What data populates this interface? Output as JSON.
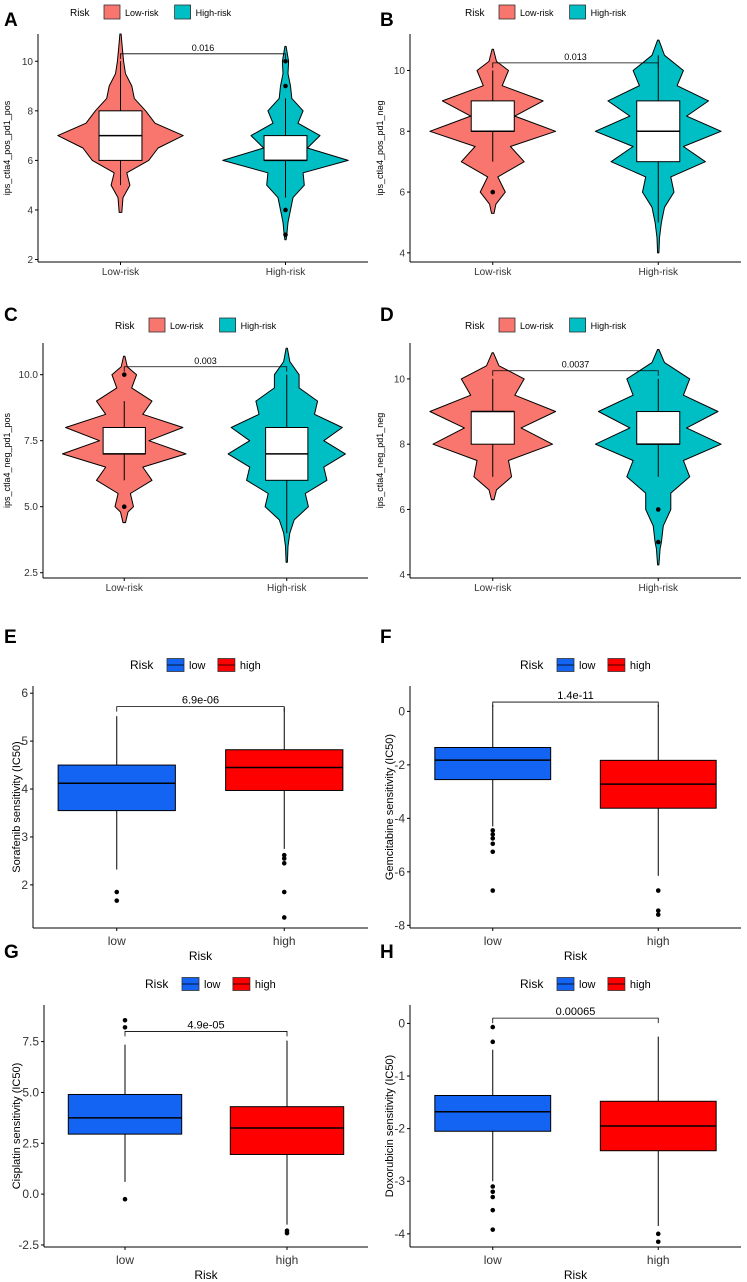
{
  "figure": {
    "legend_title": "Risk",
    "colors": {
      "violin_low": "#F8766D",
      "violin_high": "#00BFC4",
      "box_low": "#1464F4",
      "box_high": "#FF0000"
    }
  },
  "chart_data": [
    {
      "panel": "A",
      "type": "violin",
      "ylabel": "ips_ctla4_pos_pd1_pos",
      "xlabel": "",
      "categories": [
        "Low-risk",
        "High-risk"
      ],
      "legend": [
        "Low-risk",
        "High-risk"
      ],
      "ylim": [
        1.9,
        11.1
      ],
      "yticks": [
        2,
        4,
        6,
        8,
        10
      ],
      "yticklabels": [
        "2",
        "4",
        "6",
        "8",
        "10"
      ],
      "pvalue": "0.016",
      "bracket_y": 10.3,
      "violins": [
        {
          "name": "Low-risk",
          "profile": [
            [
              3.9,
              0.02
            ],
            [
              4.5,
              0.04
            ],
            [
              5,
              0.15
            ],
            [
              5.5,
              0.1
            ],
            [
              6,
              0.45
            ],
            [
              6.5,
              0.6
            ],
            [
              7,
              1.0
            ],
            [
              7.5,
              0.55
            ],
            [
              8,
              0.4
            ],
            [
              8.5,
              0.22
            ],
            [
              9,
              0.18
            ],
            [
              9.5,
              0.08
            ],
            [
              10,
              0.05
            ],
            [
              10.5,
              0.03
            ],
            [
              11.1,
              0.01
            ]
          ]
        },
        {
          "name": "High-risk",
          "profile": [
            [
              2.8,
              0.01
            ],
            [
              3,
              0.02
            ],
            [
              3.5,
              0.04
            ],
            [
              4,
              0.08
            ],
            [
              4.5,
              0.12
            ],
            [
              5,
              0.3
            ],
            [
              5.5,
              0.28
            ],
            [
              6,
              1.0
            ],
            [
              6.5,
              0.35
            ],
            [
              7,
              0.55
            ],
            [
              7.5,
              0.2
            ],
            [
              8,
              0.28
            ],
            [
              8.5,
              0.1
            ],
            [
              9,
              0.08
            ],
            [
              9.5,
              0.04
            ],
            [
              10,
              0.05
            ],
            [
              10.6,
              0.01
            ]
          ]
        }
      ],
      "boxes": [
        {
          "name": "Low-risk",
          "q1": 6,
          "median": 7,
          "q3": 8,
          "whisker_low": 5,
          "whisker_high": 10,
          "outliers": []
        },
        {
          "name": "High-risk",
          "q1": 6,
          "median": 6,
          "q3": 7,
          "whisker_low": 4.5,
          "whisker_high": 8.5,
          "outliers": [
            10,
            9,
            4,
            3
          ]
        }
      ]
    },
    {
      "panel": "B",
      "type": "violin",
      "ylabel": "ips_ctla4_pos_pd1_neg",
      "xlabel": "",
      "categories": [
        "Low-risk",
        "High-risk"
      ],
      "legend": [
        "Low-risk",
        "High-risk"
      ],
      "ylim": [
        3.7,
        11.2
      ],
      "yticks": [
        4,
        6,
        8,
        10
      ],
      "yticklabels": [
        "4",
        "6",
        "8",
        "10"
      ],
      "pvalue": "0.013",
      "bracket_y": 10.25,
      "violins": [
        {
          "name": "Low-risk",
          "profile": [
            [
              5.3,
              0.02
            ],
            [
              5.6,
              0.05
            ],
            [
              6,
              0.2
            ],
            [
              6.5,
              0.08
            ],
            [
              7,
              0.5
            ],
            [
              7.5,
              0.28
            ],
            [
              8,
              1.0
            ],
            [
              8.5,
              0.35
            ],
            [
              9,
              0.8
            ],
            [
              9.5,
              0.15
            ],
            [
              10,
              0.25
            ],
            [
              10.3,
              0.06
            ],
            [
              10.7,
              0.01
            ]
          ]
        },
        {
          "name": "High-risk",
          "profile": [
            [
              4,
              0.01
            ],
            [
              4.5,
              0.02
            ],
            [
              5,
              0.05
            ],
            [
              5.5,
              0.1
            ],
            [
              6,
              0.25
            ],
            [
              6.5,
              0.2
            ],
            [
              7,
              0.75
            ],
            [
              7.5,
              0.4
            ],
            [
              8,
              1.0
            ],
            [
              8.5,
              0.45
            ],
            [
              9,
              0.8
            ],
            [
              9.5,
              0.3
            ],
            [
              10,
              0.4
            ],
            [
              10.5,
              0.1
            ],
            [
              11,
              0.01
            ]
          ]
        }
      ],
      "boxes": [
        {
          "name": "Low-risk",
          "q1": 8,
          "median": 8,
          "q3": 9,
          "whisker_low": 7,
          "whisker_high": 10,
          "outliers": [
            6
          ]
        },
        {
          "name": "High-risk",
          "q1": 7,
          "median": 8,
          "q3": 9,
          "whisker_low": 5,
          "whisker_high": 10.5,
          "outliers": []
        }
      ]
    },
    {
      "panel": "C",
      "type": "violin",
      "ylabel": "ips_ctla4_neg_pd1_pos",
      "xlabel": "",
      "categories": [
        "Low-risk",
        "High-risk"
      ],
      "legend": [
        "Low-risk",
        "High-risk"
      ],
      "ylim": [
        2.3,
        11.2
      ],
      "yticks": [
        2.5,
        5.0,
        7.5,
        10.0
      ],
      "yticklabels": [
        "2.5",
        "5.0",
        "7.5",
        "10.0"
      ],
      "pvalue": "0.003",
      "bracket_y": 10.3,
      "violins": [
        {
          "name": "Low-risk",
          "profile": [
            [
              4.4,
              0.02
            ],
            [
              4.8,
              0.06
            ],
            [
              5,
              0.15
            ],
            [
              5.5,
              0.1
            ],
            [
              6,
              0.45
            ],
            [
              6.5,
              0.3
            ],
            [
              7,
              1.0
            ],
            [
              7.5,
              0.4
            ],
            [
              8,
              0.95
            ],
            [
              8.5,
              0.3
            ],
            [
              9,
              0.45
            ],
            [
              9.5,
              0.12
            ],
            [
              10,
              0.2
            ],
            [
              10.3,
              0.05
            ],
            [
              10.7,
              0.01
            ]
          ]
        },
        {
          "name": "High-risk",
          "profile": [
            [
              2.9,
              0.01
            ],
            [
              3.5,
              0.02
            ],
            [
              4,
              0.05
            ],
            [
              4.5,
              0.12
            ],
            [
              5,
              0.35
            ],
            [
              5.5,
              0.3
            ],
            [
              6,
              0.65
            ],
            [
              6.5,
              0.6
            ],
            [
              7,
              0.95
            ],
            [
              7.5,
              0.6
            ],
            [
              8,
              0.9
            ],
            [
              8.5,
              0.45
            ],
            [
              9,
              0.5
            ],
            [
              9.5,
              0.2
            ],
            [
              10,
              0.2
            ],
            [
              10.5,
              0.05
            ],
            [
              11,
              0.01
            ]
          ]
        }
      ],
      "boxes": [
        {
          "name": "Low-risk",
          "q1": 7,
          "median": 7,
          "q3": 8,
          "whisker_low": 6,
          "whisker_high": 9,
          "outliers": [
            10,
            5
          ]
        },
        {
          "name": "High-risk",
          "q1": 6,
          "median": 7,
          "q3": 8,
          "whisker_low": 4,
          "whisker_high": 10,
          "outliers": []
        }
      ]
    },
    {
      "panel": "D",
      "type": "violin",
      "ylabel": "ips_ctla4_neg_pd1_neg",
      "xlabel": "",
      "categories": [
        "Low-risk",
        "High-risk"
      ],
      "legend": [
        "Low-risk",
        "High-risk"
      ],
      "ylim": [
        3.9,
        11.1
      ],
      "yticks": [
        4,
        6,
        8,
        10
      ],
      "yticklabels": [
        "4",
        "6",
        "8",
        "10"
      ],
      "pvalue": "0.0037",
      "bracket_y": 10.25,
      "violins": [
        {
          "name": "Low-risk",
          "profile": [
            [
              6.3,
              0.02
            ],
            [
              6.6,
              0.06
            ],
            [
              7,
              0.3
            ],
            [
              7.5,
              0.25
            ],
            [
              8,
              0.95
            ],
            [
              8.5,
              0.45
            ],
            [
              9,
              1.0
            ],
            [
              9.5,
              0.35
            ],
            [
              10,
              0.5
            ],
            [
              10.4,
              0.1
            ],
            [
              10.8,
              0.01
            ]
          ]
        },
        {
          "name": "High-risk",
          "profile": [
            [
              4.3,
              0.01
            ],
            [
              4.8,
              0.03
            ],
            [
              5,
              0.05
            ],
            [
              5.5,
              0.08
            ],
            [
              6,
              0.2
            ],
            [
              6.5,
              0.2
            ],
            [
              7,
              0.5
            ],
            [
              7.5,
              0.4
            ],
            [
              8,
              1.0
            ],
            [
              8.5,
              0.45
            ],
            [
              9,
              0.95
            ],
            [
              9.5,
              0.4
            ],
            [
              10,
              0.5
            ],
            [
              10.5,
              0.1
            ],
            [
              10.9,
              0.01
            ]
          ]
        }
      ],
      "boxes": [
        {
          "name": "Low-risk",
          "q1": 8,
          "median": 9,
          "q3": 9,
          "whisker_low": 7,
          "whisker_high": 10,
          "outliers": []
        },
        {
          "name": "High-risk",
          "q1": 8,
          "median": 8,
          "q3": 9,
          "whisker_low": 7,
          "whisker_high": 10,
          "outliers": [
            6,
            5
          ]
        }
      ]
    },
    {
      "panel": "E",
      "type": "box",
      "ylabel": "Sorafenib sensitivity (IC50)",
      "xlabel": "Risk",
      "categories": [
        "low",
        "high"
      ],
      "legend": [
        "low",
        "high"
      ],
      "ylim": [
        1.1,
        6.15
      ],
      "yticks": [
        2,
        3,
        4,
        5,
        6
      ],
      "yticklabels": [
        "2",
        "3",
        "4",
        "5",
        "6"
      ],
      "pvalue": "6.9e-06",
      "bracket_y": 5.72,
      "boxes": [
        {
          "name": "low",
          "q1": 3.55,
          "median": 4.12,
          "q3": 4.5,
          "whisker_low": 2.32,
          "whisker_high": 5.52,
          "outliers": [
            1.85,
            1.67
          ]
        },
        {
          "name": "high",
          "q1": 3.97,
          "median": 4.45,
          "q3": 4.82,
          "whisker_low": 2.75,
          "whisker_high": 5.7,
          "outliers": [
            2.62,
            2.55,
            2.45,
            1.85,
            1.32
          ]
        }
      ]
    },
    {
      "panel": "F",
      "type": "box",
      "ylabel": "Gemcitabine sensitivity (IC50)",
      "xlabel": "Risk",
      "categories": [
        "low",
        "high"
      ],
      "legend": [
        "low",
        "high"
      ],
      "ylim": [
        -8.1,
        0.95
      ],
      "yticks": [
        -8,
        -6,
        -4,
        -2,
        0
      ],
      "yticklabels": [
        "-8",
        "-6",
        "-4",
        "-2",
        "0"
      ],
      "pvalue": "1.4e-11",
      "bracket_y": 0.35,
      "boxes": [
        {
          "name": "low",
          "q1": -2.55,
          "median": -1.82,
          "q3": -1.35,
          "whisker_low": -4.3,
          "whisker_high": 0.25,
          "outliers": [
            -4.45,
            -4.6,
            -4.75,
            -4.95,
            -5.25,
            -6.7
          ]
        },
        {
          "name": "high",
          "q1": -3.62,
          "median": -2.72,
          "q3": -1.83,
          "whisker_low": -6.15,
          "whisker_high": 0.25,
          "outliers": [
            -6.7,
            -7.45,
            -7.6
          ]
        }
      ]
    },
    {
      "panel": "G",
      "type": "box",
      "ylabel": "Cisplatin sensitivity (IC50)",
      "xlabel": "Risk",
      "categories": [
        "low",
        "high"
      ],
      "legend": [
        "low",
        "high"
      ],
      "ylim": [
        -2.6,
        9.3
      ],
      "yticks": [
        -2.5,
        0.0,
        2.5,
        5.0,
        7.5
      ],
      "yticklabels": [
        "-2.5",
        "0.0",
        "2.5",
        "5.0",
        "7.5"
      ],
      "pvalue": "4.9e-05",
      "bracket_y": 8.0,
      "boxes": [
        {
          "name": "low",
          "q1": 2.95,
          "median": 3.75,
          "q3": 4.9,
          "whisker_low": 0.6,
          "whisker_high": 7.35,
          "outliers": [
            8.55,
            8.2,
            -0.25
          ]
        },
        {
          "name": "high",
          "q1": 1.95,
          "median": 3.25,
          "q3": 4.3,
          "whisker_low": -1.5,
          "whisker_high": 7.55,
          "outliers": [
            -1.8,
            -1.92
          ]
        }
      ]
    },
    {
      "panel": "H",
      "type": "box",
      "ylabel": "Doxorubicin sensitivity (IC50)",
      "xlabel": "Risk",
      "categories": [
        "low",
        "high"
      ],
      "legend": [
        "low",
        "high"
      ],
      "ylim": [
        -4.25,
        0.35
      ],
      "yticks": [
        -4,
        -3,
        -2,
        -1,
        0
      ],
      "yticklabels": [
        "-4",
        "-3",
        "-2",
        "-1",
        "0"
      ],
      "pvalue": "0.00065",
      "bracket_y": 0.1,
      "boxes": [
        {
          "name": "low",
          "q1": -2.05,
          "median": -1.68,
          "q3": -1.37,
          "whisker_low": -3.0,
          "whisker_high": -0.5,
          "outliers": [
            -0.07,
            -0.35,
            -3.1,
            -3.2,
            -3.3,
            -3.55,
            -3.92
          ]
        },
        {
          "name": "high",
          "q1": -2.42,
          "median": -1.95,
          "q3": -1.48,
          "whisker_low": -3.85,
          "whisker_high": -0.25,
          "outliers": [
            -4.0,
            -4.15
          ]
        }
      ]
    }
  ]
}
